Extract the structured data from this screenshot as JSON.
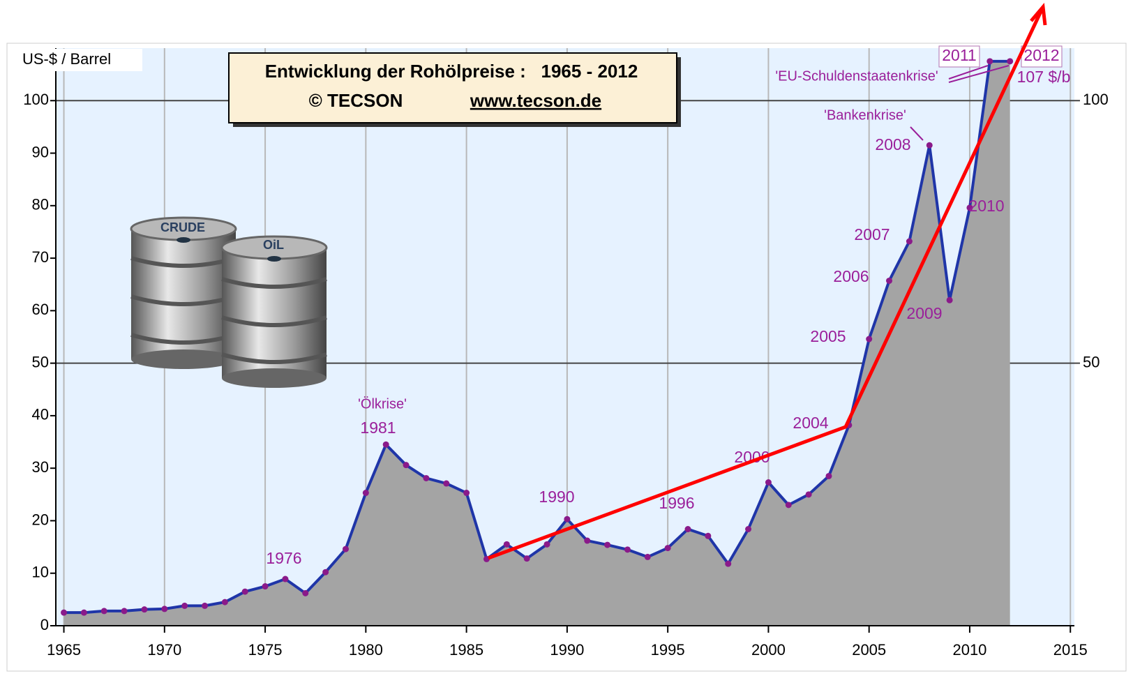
{
  "chart_data": {
    "type": "area",
    "title": "Entwicklung der Rohölpreise :   1965 - 2012",
    "copyright": "© TECSON",
    "website": "www.tecson.de",
    "y_label": "US-$ / Barrel",
    "x": [
      1965,
      1966,
      1967,
      1968,
      1969,
      1970,
      1971,
      1972,
      1973,
      1974,
      1975,
      1976,
      1977,
      1978,
      1979,
      1980,
      1981,
      1982,
      1983,
      1984,
      1985,
      1986,
      1987,
      1988,
      1989,
      1990,
      1991,
      1992,
      1993,
      1994,
      1995,
      1996,
      1997,
      1998,
      1999,
      2000,
      2001,
      2002,
      2003,
      2004,
      2005,
      2006,
      2007,
      2008,
      2009,
      2010,
      2011,
      2012
    ],
    "values": [
      2.5,
      2.5,
      2.8,
      2.8,
      3.1,
      3.2,
      3.8,
      3.8,
      4.5,
      6.5,
      7.5,
      8.9,
      6.2,
      10.2,
      14.6,
      25.3,
      34.5,
      30.6,
      28.1,
      27.1,
      25.3,
      12.7,
      15.5,
      12.8,
      15.5,
      20.3,
      16.2,
      15.4,
      14.5,
      13.1,
      14.8,
      18.4,
      17.1,
      11.8,
      18.4,
      27.3,
      23.0,
      25.0,
      28.5,
      38.2,
      54.6,
      65.7,
      73.2,
      91.5,
      62.0,
      79.6,
      107.5,
      107.5
    ],
    "color": "#1f35a8",
    "fill_color": "#a4a4a4",
    "marker_color": "#8a1a8a",
    "xlim": [
      1964.6,
      2015.2
    ],
    "xticks": [
      1965,
      1970,
      1975,
      1980,
      1985,
      1990,
      1995,
      2000,
      2005,
      2010,
      2015
    ],
    "ylim": [
      0,
      110
    ],
    "yticks": [
      0,
      10,
      20,
      30,
      40,
      50,
      60,
      70,
      80,
      90,
      100
    ],
    "y2lim": [
      0,
      110
    ],
    "y2ticks": [
      50,
      100
    ],
    "grid": true,
    "annotations": [
      "1976",
      "'Ölkrise'",
      "1981",
      "1990",
      "1996",
      "2000",
      "2004",
      "2005",
      "2006",
      "2007",
      "'Bankenkrise'",
      "2008",
      "2009",
      "2010",
      "2011",
      "2012",
      "'EU-Schuldenstaatenkrise'",
      "107 $/b"
    ],
    "image_labels": [
      "CRUDE",
      "OiL"
    ]
  }
}
